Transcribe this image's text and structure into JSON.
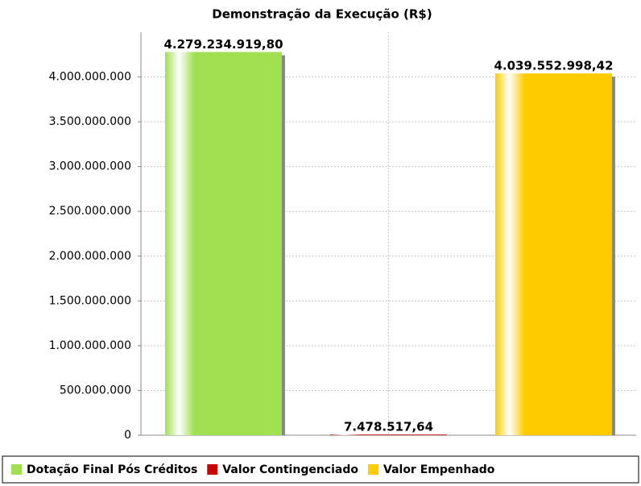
{
  "chart_data": {
    "type": "bar",
    "title": "Demonstração da Execução (R$)",
    "categories": [
      null
    ],
    "series": [
      {
        "name": "Dotação Final Pós Créditos",
        "color": "#a0e050",
        "values": [
          4279234919.8
        ],
        "value_labels": [
          "4.279.234.919,80"
        ]
      },
      {
        "name": "Valor Contingenciado",
        "color": "#cc0000",
        "values": [
          7478517.64
        ],
        "value_labels": [
          "7.478.517,64"
        ]
      },
      {
        "name": "Valor Empenhado",
        "color": "#ffcc00",
        "values": [
          4039552998.42
        ],
        "value_labels": [
          "4.039.552.998,42"
        ]
      }
    ],
    "ylim": [
      0,
      4500000000
    ],
    "yticks": [
      0,
      {
        "value": 500000000,
        "label": "500.000.000"
      },
      {
        "value": 1000000000,
        "label": "1.000.000.000"
      },
      {
        "value": 1500000000,
        "label": "1.500.000.000"
      },
      {
        "value": 2000000000,
        "label": "2.000.000.000"
      },
      {
        "value": 2500000000,
        "label": "2.500.000.000"
      },
      {
        "value": 3000000000,
        "label": "3.000.000.000"
      },
      {
        "value": 3500000000,
        "label": "3.500.000.000"
      },
      {
        "value": 4000000000,
        "label": "4.000.000.000"
      }
    ],
    "grid": true,
    "legend": "bottom"
  }
}
